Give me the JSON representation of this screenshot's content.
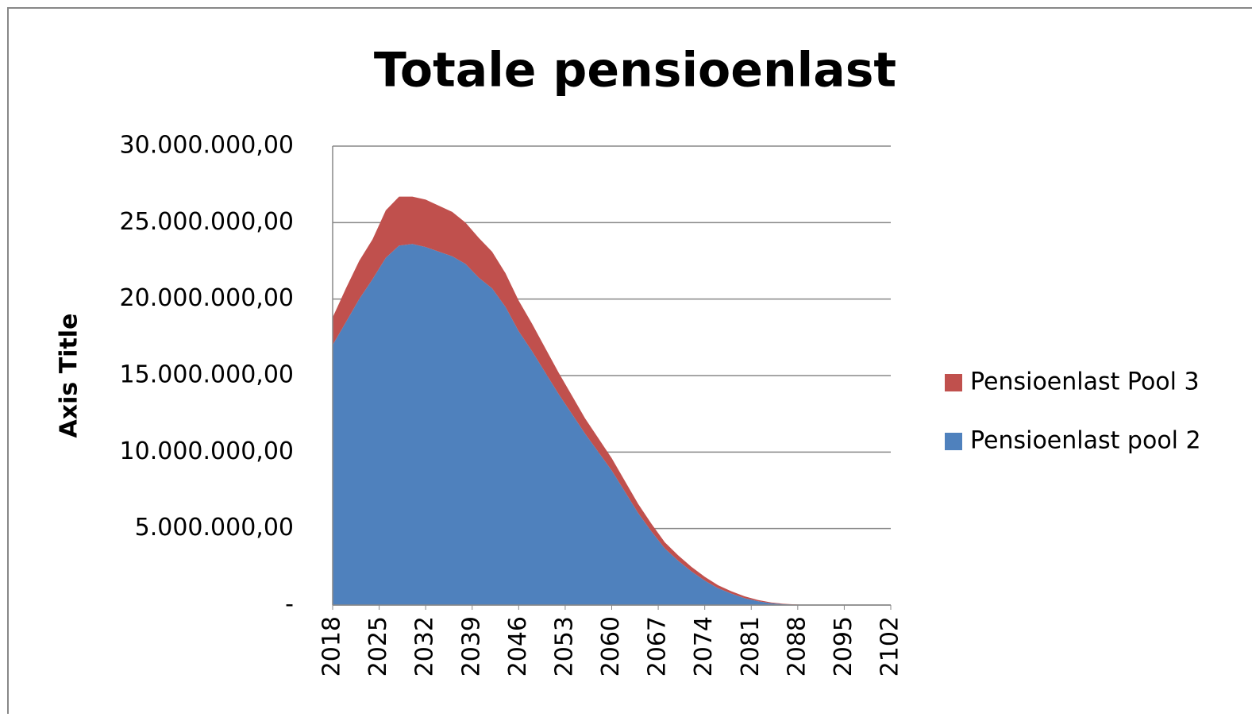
{
  "chart_data": {
    "type": "stacked_area",
    "title": "Totale pensioenlast",
    "y_label": "Axis Title",
    "x": [
      2018,
      2020,
      2022,
      2024,
      2026,
      2028,
      2030,
      2032,
      2034,
      2036,
      2038,
      2040,
      2042,
      2044,
      2046,
      2048,
      2050,
      2052,
      2054,
      2056,
      2058,
      2060,
      2062,
      2064,
      2066,
      2068,
      2070,
      2072,
      2074,
      2076,
      2078,
      2080,
      2082,
      2084,
      2086,
      2088,
      2090,
      2092,
      2094,
      2096,
      2098,
      2100,
      2102
    ],
    "xlim": [
      2018,
      2102
    ],
    "xticks": [
      2018,
      2025,
      2032,
      2039,
      2046,
      2053,
      2060,
      2067,
      2074,
      2081,
      2088,
      2095,
      2102
    ],
    "ylim": [
      0,
      30000000
    ],
    "yticks": [
      {
        "value": 0,
        "label": "-"
      },
      {
        "value": 5000000,
        "label": "5.000.000,00"
      },
      {
        "value": 10000000,
        "label": "10.000.000,00"
      },
      {
        "value": 15000000,
        "label": "15.000.000,00"
      },
      {
        "value": 20000000,
        "label": "20.000.000,00"
      },
      {
        "value": 25000000,
        "label": "25.000.000,00"
      },
      {
        "value": 30000000,
        "label": "30.000.000,00"
      }
    ],
    "grid": true,
    "legend": "right",
    "series": [
      {
        "name": "Pensioenlast pool 2",
        "color": "#4f81bd",
        "values": [
          17000000,
          18500000,
          20000000,
          21300000,
          22700000,
          23500000,
          23600000,
          23400000,
          23100000,
          22800000,
          22300000,
          21400000,
          20700000,
          19500000,
          17900000,
          16600000,
          15200000,
          13800000,
          12500000,
          11200000,
          10000000,
          8800000,
          7400000,
          6000000,
          4800000,
          3700000,
          2900000,
          2200000,
          1600000,
          1100000,
          750000,
          450000,
          250000,
          120000,
          50000,
          20000,
          0,
          0,
          0,
          0,
          0,
          0,
          0
        ]
      },
      {
        "name": "Pensioenlast Pool 3",
        "color": "#c0504d",
        "values": [
          1800000,
          2200000,
          2500000,
          2600000,
          3100000,
          3200000,
          3100000,
          3100000,
          3000000,
          2900000,
          2700000,
          2600000,
          2400000,
          2200000,
          2000000,
          1800000,
          1600000,
          1400000,
          1200000,
          1000000,
          900000,
          800000,
          700000,
          600000,
          500000,
          400000,
          350000,
          300000,
          250000,
          200000,
          150000,
          120000,
          80000,
          50000,
          30000,
          10000,
          0,
          0,
          0,
          0,
          0,
          0,
          0
        ]
      }
    ]
  }
}
